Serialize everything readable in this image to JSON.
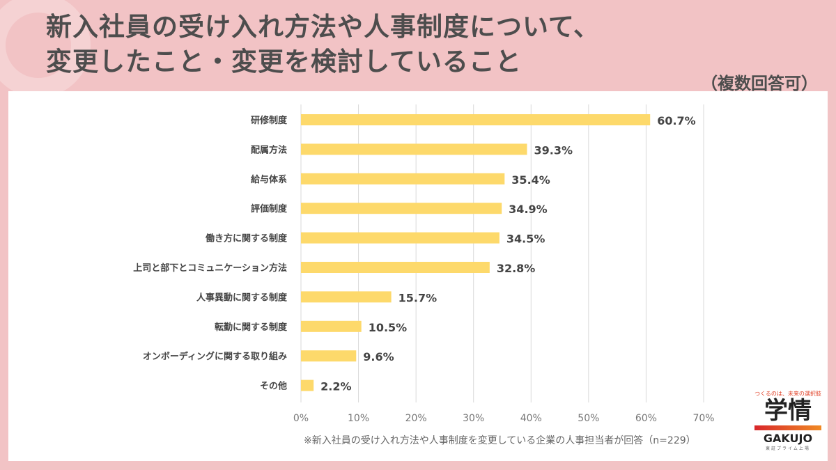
{
  "header": {
    "title_line1": "新入社員の受け入れ方法や人事制度について、",
    "title_line2": "変更したこと・変更を検討していること",
    "multiple_answers": "（複数回答可）"
  },
  "chart_data": {
    "type": "bar",
    "orientation": "horizontal",
    "categories": [
      "研修制度",
      "配属方法",
      "給与体系",
      "評価制度",
      "働き方に関する制度",
      "上司と部下とコミュニケーション方法",
      "人事異動に関する制度",
      "転勤に関する制度",
      "オンボーディングに関する取り組み",
      "その他"
    ],
    "values": [
      60.7,
      39.3,
      35.4,
      34.9,
      34.5,
      32.8,
      15.7,
      10.5,
      9.6,
      2.2
    ],
    "data_labels": [
      "60.7%",
      "39.3%",
      "35.4%",
      "34.9%",
      "34.5%",
      "32.8%",
      "15.7%",
      "10.5%",
      "9.6%",
      "2.2%"
    ],
    "xlim": [
      0,
      70
    ],
    "x_ticks": [
      "0%",
      "10%",
      "20%",
      "30%",
      "40%",
      "50%",
      "60%",
      "70%"
    ],
    "grid": true,
    "bar_color": "#fdd96b"
  },
  "footnote": "※新入社員の受け入れ方法や人事制度を変更している企業の人事担当者が回答（n=229）",
  "logo": {
    "tagline": "つくるのは、未来の選択肢",
    "kanji": "学情",
    "name": "GAKUJO",
    "sub": "東証プライム上場"
  }
}
